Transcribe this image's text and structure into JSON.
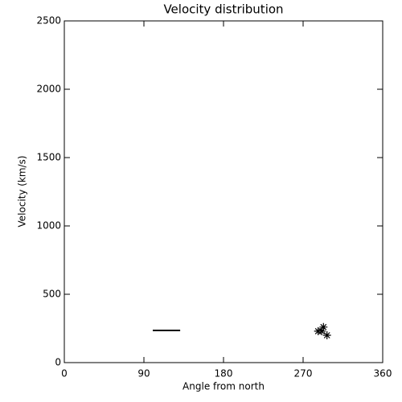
{
  "chart_data": {
    "type": "scatter",
    "title": "Velocity distribution",
    "x_label": "Angle from north",
    "y_label": "Velocity (km/s)",
    "x": [
      287,
      291,
      293,
      297
    ],
    "values": [
      230,
      230,
      260,
      200
    ],
    "line": {
      "x": [
        100,
        131
      ],
      "values": [
        235,
        235
      ]
    },
    "color": "#000000",
    "xlim": [
      0,
      360
    ],
    "xticks": [
      0,
      90,
      180,
      270,
      360
    ],
    "ylim": [
      0,
      2500
    ],
    "yticks": [
      0,
      500,
      1000,
      1500,
      2000,
      2500
    ],
    "grid": false
  }
}
